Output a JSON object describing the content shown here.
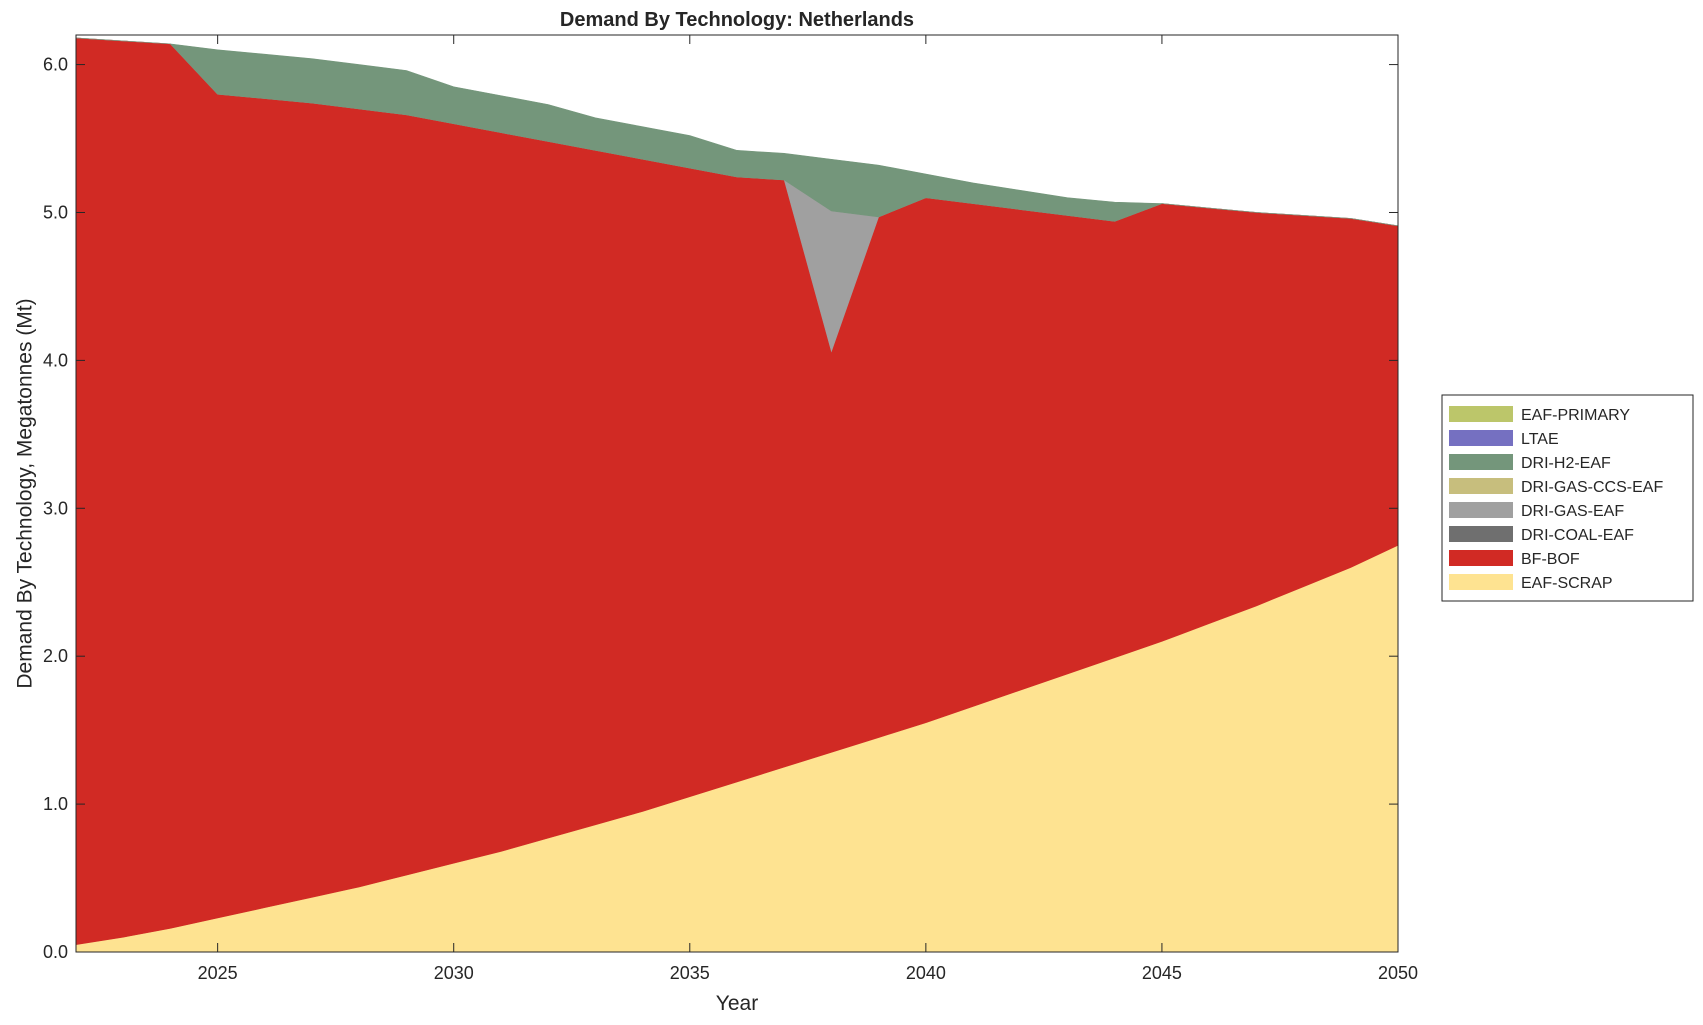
{
  "chart_data": {
    "type": "area",
    "stacked": true,
    "title": "Demand By Technology: Netherlands",
    "xlabel": "Year",
    "ylabel": "Demand By Technology, Megatonnes (Mt)",
    "xlim": [
      2022,
      2050
    ],
    "ylim": [
      0,
      6.2
    ],
    "x_ticks": [
      2025,
      2030,
      2035,
      2040,
      2045,
      2050
    ],
    "x_tick_labels": [
      "2025",
      "2030",
      "2035",
      "2040",
      "2045",
      "2050"
    ],
    "y_ticks": [
      0,
      1,
      2,
      3,
      4,
      5,
      6
    ],
    "y_tick_labels": [
      "0.0",
      "1.0",
      "2.0",
      "3.0",
      "4.0",
      "5.0",
      "6.0"
    ],
    "grid": false,
    "legend_position": "right",
    "x": [
      2022,
      2023,
      2024,
      2025,
      2026,
      2027,
      2028,
      2029,
      2030,
      2031,
      2032,
      2033,
      2034,
      2035,
      2036,
      2037,
      2038,
      2039,
      2040,
      2041,
      2042,
      2043,
      2044,
      2045,
      2046,
      2047,
      2048,
      2049,
      2050
    ],
    "series": [
      {
        "name": "EAF-SCRAP",
        "color": "#FEE391",
        "values": [
          0.05,
          0.1,
          0.16,
          0.23,
          0.3,
          0.37,
          0.44,
          0.52,
          0.6,
          0.68,
          0.77,
          0.86,
          0.95,
          1.05,
          1.15,
          1.25,
          1.35,
          1.45,
          1.55,
          1.66,
          1.77,
          1.88,
          1.99,
          2.1,
          2.22,
          2.34,
          2.47,
          2.6,
          2.75
        ]
      },
      {
        "name": "BF-BOF",
        "color": "#D12A24",
        "values": [
          6.13,
          6.06,
          5.98,
          5.57,
          5.47,
          5.37,
          5.26,
          5.14,
          5.0,
          4.86,
          4.71,
          4.56,
          4.41,
          4.25,
          4.09,
          3.97,
          2.71,
          3.52,
          3.55,
          3.4,
          3.25,
          3.1,
          2.95,
          2.96,
          2.81,
          2.66,
          2.51,
          2.36,
          2.16
        ]
      },
      {
        "name": "DRI-COAL-EAF",
        "color": "#6F6F6F",
        "values": [
          0,
          0,
          0,
          0,
          0,
          0,
          0,
          0,
          0,
          0,
          0,
          0,
          0,
          0,
          0,
          0,
          0,
          0,
          0,
          0,
          0,
          0,
          0,
          0,
          0,
          0,
          0,
          0,
          0
        ]
      },
      {
        "name": "DRI-GAS-EAF",
        "color": "#A0A0A0",
        "values": [
          0,
          0,
          0,
          0,
          0,
          0,
          0,
          0,
          0,
          0,
          0,
          0,
          0,
          0,
          0,
          0,
          0.95,
          0,
          0,
          0,
          0,
          0,
          0,
          0,
          0,
          0,
          0,
          0,
          0
        ]
      },
      {
        "name": "DRI-GAS-CCS-EAF",
        "color": "#C7BE7D",
        "values": [
          0,
          0,
          0,
          0,
          0,
          0,
          0,
          0,
          0,
          0,
          0,
          0,
          0,
          0,
          0,
          0,
          0,
          0,
          0,
          0,
          0,
          0,
          0,
          0,
          0,
          0,
          0,
          0,
          0
        ]
      },
      {
        "name": "DRI-H2-EAF",
        "color": "#74967B",
        "values": [
          0,
          0,
          0,
          0.3,
          0.3,
          0.3,
          0.3,
          0.3,
          0.25,
          0.25,
          0.25,
          0.22,
          0.22,
          0.22,
          0.18,
          0.18,
          0.35,
          0.35,
          0.16,
          0.14,
          0.13,
          0.12,
          0.13,
          0,
          0,
          0,
          0,
          0,
          0
        ]
      },
      {
        "name": "LTAE",
        "color": "#7570C1",
        "values": [
          0,
          0,
          0,
          0,
          0,
          0,
          0,
          0,
          0,
          0,
          0,
          0,
          0,
          0,
          0,
          0,
          0,
          0,
          0,
          0,
          0,
          0,
          0,
          0,
          0,
          0,
          0,
          0,
          0
        ]
      },
      {
        "name": "EAF-PRIMARY",
        "color": "#BCC66A",
        "values": [
          0,
          0,
          0,
          0,
          0,
          0,
          0,
          0,
          0,
          0,
          0,
          0,
          0,
          0,
          0,
          0,
          0,
          0,
          0,
          0,
          0,
          0,
          0,
          0,
          0,
          0,
          0,
          0,
          0
        ]
      }
    ],
    "legend_order": [
      "EAF-PRIMARY",
      "LTAE",
      "DRI-H2-EAF",
      "DRI-GAS-CCS-EAF",
      "DRI-GAS-EAF",
      "DRI-COAL-EAF",
      "BF-BOF",
      "EAF-SCRAP"
    ]
  }
}
